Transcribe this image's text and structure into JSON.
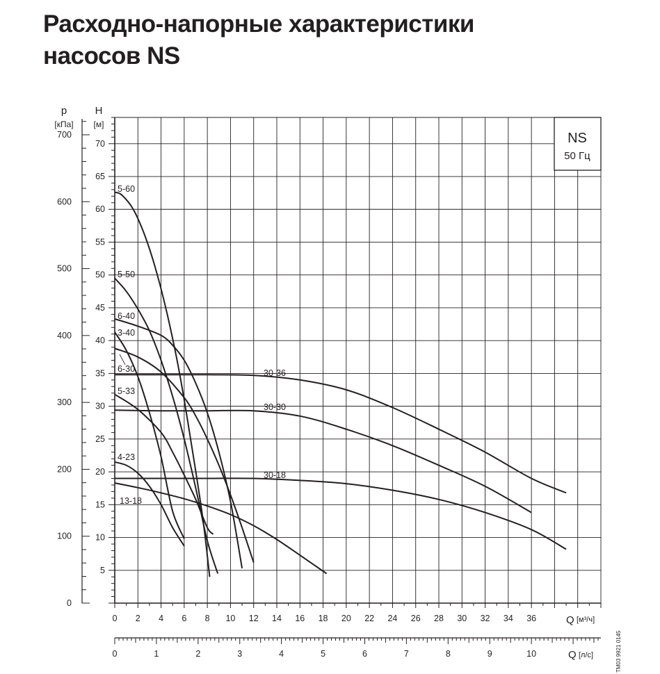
{
  "title_lines": [
    "Расходно-напорные характеристики",
    "насосов NS"
  ],
  "chart_data": {
    "type": "line",
    "box": {
      "line1": "NS",
      "line2": "50 Гц"
    },
    "y_left": {
      "symbol": "p",
      "unit": "[кПа]",
      "ticks": [
        0,
        100,
        200,
        300,
        400,
        500,
        600,
        700
      ],
      "range": [
        0,
        700
      ]
    },
    "y_right": {
      "symbol": "H",
      "unit": "[м]",
      "ticks": [
        5,
        10,
        15,
        20,
        25,
        30,
        35,
        40,
        45,
        50,
        55,
        60,
        65,
        70
      ],
      "range": [
        0,
        74
      ]
    },
    "x_top": {
      "symbol": "Q",
      "unit": "[м³/ч]",
      "ticks": [
        0,
        2,
        4,
        6,
        8,
        10,
        12,
        14,
        16,
        18,
        20,
        22,
        24,
        26,
        28,
        30,
        32,
        34,
        36
      ],
      "range": [
        0,
        42
      ]
    },
    "x_bottom": {
      "symbol": "Q",
      "unit": "[л/с]",
      "ticks": [
        0,
        1,
        2,
        3,
        4,
        5,
        6,
        7,
        8,
        9,
        10
      ],
      "range": [
        0,
        11.667
      ]
    },
    "grid": true,
    "footnote": "TM03 9921 0145",
    "series": [
      {
        "name": "5-60",
        "x": [
          0,
          0.6,
          1.6,
          2.6,
          3.6,
          4.6,
          5.6,
          6.6,
          7.6,
          8.2
        ],
        "y": [
          62.6,
          62.2,
          60,
          56,
          50.5,
          43.5,
          35,
          24.5,
          13,
          4
        ]
      },
      {
        "name": "5-50",
        "x": [
          0,
          1,
          2,
          3,
          4,
          5,
          6,
          7,
          8,
          8.9
        ],
        "y": [
          49.5,
          47.5,
          44.8,
          41.5,
          37,
          31.5,
          25,
          17.5,
          9.5,
          4.5
        ]
      },
      {
        "name": "6-40",
        "x": [
          0,
          2,
          4,
          5,
          6,
          7,
          8,
          9,
          10,
          11.0
        ],
        "y": [
          43.3,
          42.2,
          40.8,
          39.3,
          37,
          33.5,
          29,
          23,
          15.5,
          5.3
        ]
      },
      {
        "name": "3-40",
        "x": [
          0,
          1,
          2,
          3,
          4,
          5,
          6
        ],
        "y": [
          41.3,
          38.5,
          34.5,
          29,
          22.3,
          14,
          9.8
        ]
      },
      {
        "name": "6-30",
        "x": [
          0,
          2,
          4,
          6,
          7,
          8,
          9,
          10,
          11,
          12.0
        ],
        "y": [
          38.8,
          37.5,
          35.2,
          31.3,
          28.5,
          25,
          21,
          16.5,
          11.5,
          6.2
        ]
      },
      {
        "name": "5-33",
        "x": [
          0,
          2,
          4,
          5,
          6,
          7,
          8,
          8.5
        ],
        "y": [
          31.8,
          29.5,
          26,
          23,
          19.5,
          15.8,
          11.5,
          10.5
        ]
      },
      {
        "name": "4-23",
        "x": [
          0,
          1,
          2,
          3,
          4,
          5,
          6
        ],
        "y": [
          21.5,
          21,
          19.8,
          17.8,
          15,
          11.5,
          8.7
        ]
      },
      {
        "name": "13-18",
        "x": [
          0,
          2,
          4,
          6,
          8,
          10,
          12,
          14,
          16,
          18.3
        ],
        "y": [
          18.3,
          17.6,
          16.8,
          15.9,
          14.8,
          13.5,
          11.8,
          9.7,
          7.3,
          4.5
        ]
      },
      {
        "name": "30-36",
        "x": [
          0,
          4,
          8,
          12,
          16,
          20,
          24,
          28,
          32,
          36,
          39
        ],
        "y": [
          34.8,
          34.8,
          34.8,
          34.7,
          34,
          32.5,
          29.8,
          26.5,
          23,
          19,
          16.8
        ]
      },
      {
        "name": "30-30",
        "x": [
          0,
          4,
          8,
          12,
          16,
          20,
          24,
          28,
          32,
          36
        ],
        "y": [
          29.4,
          29.3,
          29.3,
          29.3,
          28.5,
          26.5,
          24,
          21,
          17.8,
          13.8
        ]
      },
      {
        "name": "30-18",
        "x": [
          0,
          4,
          8,
          12,
          16,
          20,
          24,
          28,
          32,
          36,
          39.0
        ],
        "y": [
          19,
          19,
          19,
          19,
          18.7,
          18.2,
          17.2,
          15.8,
          13.8,
          11.2,
          8.2
        ]
      }
    ]
  }
}
